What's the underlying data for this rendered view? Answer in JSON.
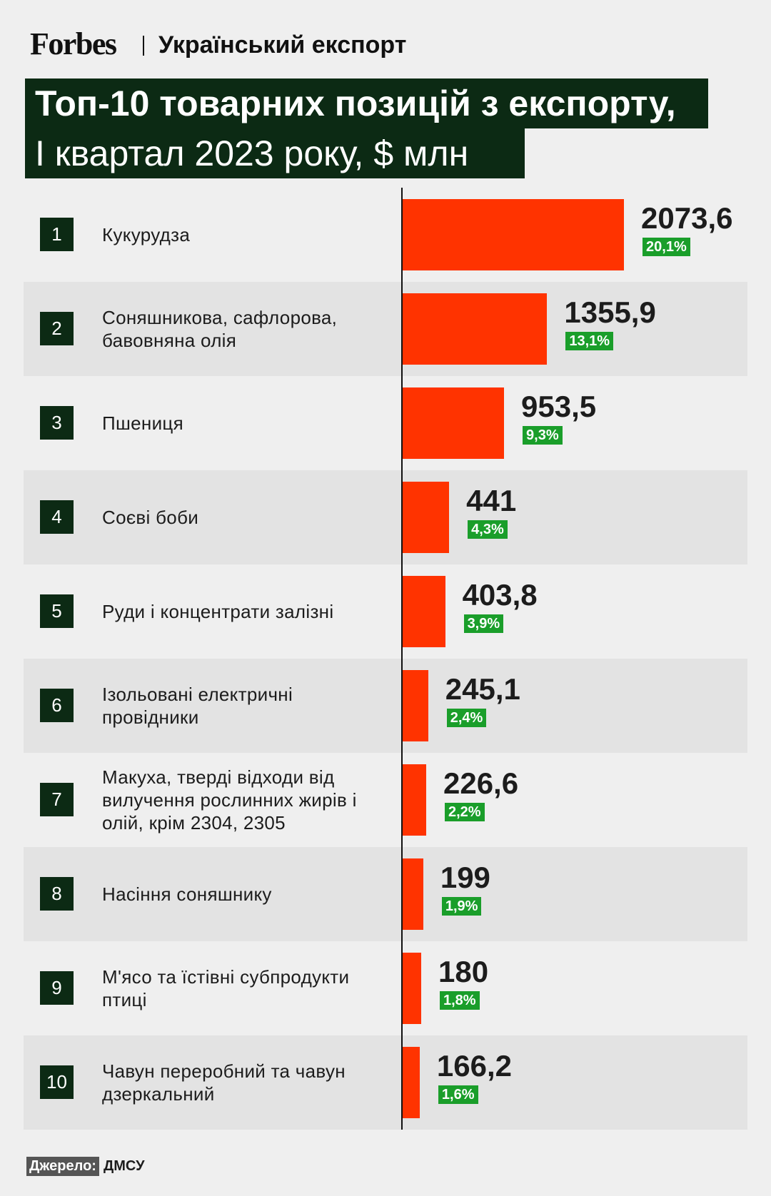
{
  "header": {
    "brand": "Forbes",
    "section": "Український експорт"
  },
  "chart_data": {
    "type": "bar",
    "orientation": "horizontal",
    "title": "Топ-10 товарних позицій з експорту,",
    "subtitle": "І квартал 2023 року, $ млн",
    "ranks": [
      1,
      2,
      3,
      4,
      5,
      6,
      7,
      8,
      9,
      10
    ],
    "categories": [
      "Кукурудза",
      "Соняшникова, сафлорова, бавовняна олія",
      "Пшениця",
      "Соєві боби",
      "Руди і концентрати залізні",
      "Ізольовані електричні провідники",
      "Макуха, тверді відходи від вилучення рослинних жирів і олій, крім 2304, 2305",
      "Насіння соняшнику",
      "М'ясо та їстівні субпродукти птиці",
      "Чавун переробний та чавун дзеркальний"
    ],
    "values": [
      2073.6,
      1355.9,
      953.5,
      441,
      403.8,
      245.1,
      226.6,
      199,
      180,
      166.2
    ],
    "value_labels": [
      "2073,6",
      "1355,9",
      "953,5",
      "441",
      "403,8",
      "245,1",
      "226,6",
      "199",
      "180",
      "166,2"
    ],
    "shares": [
      20.1,
      13.1,
      9.3,
      4.3,
      3.9,
      2.4,
      2.2,
      1.9,
      1.8,
      1.6
    ],
    "share_labels": [
      "20,1%",
      "13,1%",
      "9,3%",
      "4,3%",
      "3,9%",
      "2,4%",
      "2,2%",
      "1,9%",
      "1,8%",
      "1,6%"
    ],
    "color": "#ff3300",
    "share_color": "#1a9e2a",
    "xlim": [
      0,
      2200
    ]
  },
  "source": {
    "label": "Джерело:",
    "name": "ДМСУ"
  }
}
